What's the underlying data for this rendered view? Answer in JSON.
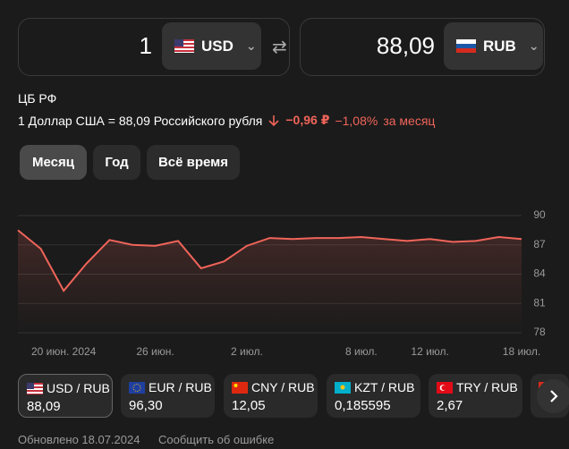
{
  "converter": {
    "from": {
      "amount": "1",
      "currency": "USD"
    },
    "to": {
      "amount": "88,09",
      "currency": "RUB"
    }
  },
  "source": "ЦБ РФ",
  "rate_text": "1 Доллар США = 88,09 Российского рубля",
  "change": {
    "absolute": "−0,96 ₽",
    "percent": "−1,08%",
    "period": "за месяц"
  },
  "periods": [
    "Месяц",
    "Год",
    "Всё время"
  ],
  "chart": {
    "type": "line",
    "color": "#f0645a",
    "x": [
      null,
      null,
      "20 июн. 2024",
      null,
      null,
      null,
      "26 июн.",
      null,
      null,
      null,
      "2 июл.",
      null,
      null,
      null,
      null,
      "8 июл.",
      null,
      null,
      "12 июл.",
      null,
      null,
      null,
      "18 июл."
    ],
    "values": [
      88.5,
      86.6,
      82.3,
      85.1,
      87.5,
      87.0,
      86.9,
      87.4,
      84.6,
      85.3,
      86.9,
      87.7,
      87.6,
      87.7,
      87.7,
      87.8,
      87.6,
      87.4,
      87.6,
      87.3,
      87.4,
      87.8,
      87.6
    ],
    "ylim": [
      78,
      90
    ],
    "yticks": [
      78,
      81,
      84,
      87,
      90
    ],
    "grid": true
  },
  "pairs": [
    {
      "name": "USD / RUB",
      "rate": "88,09"
    },
    {
      "name": "EUR / RUB",
      "rate": "96,30"
    },
    {
      "name": "CNY / RUB",
      "rate": "12,05"
    },
    {
      "name": "KZT / RUB",
      "rate": "0,185595"
    },
    {
      "name": "TRY / RUB",
      "rate": "2,67"
    }
  ],
  "footer": {
    "updated": "Обновлено 18.07.2024",
    "report": "Сообщить об ошибке"
  }
}
